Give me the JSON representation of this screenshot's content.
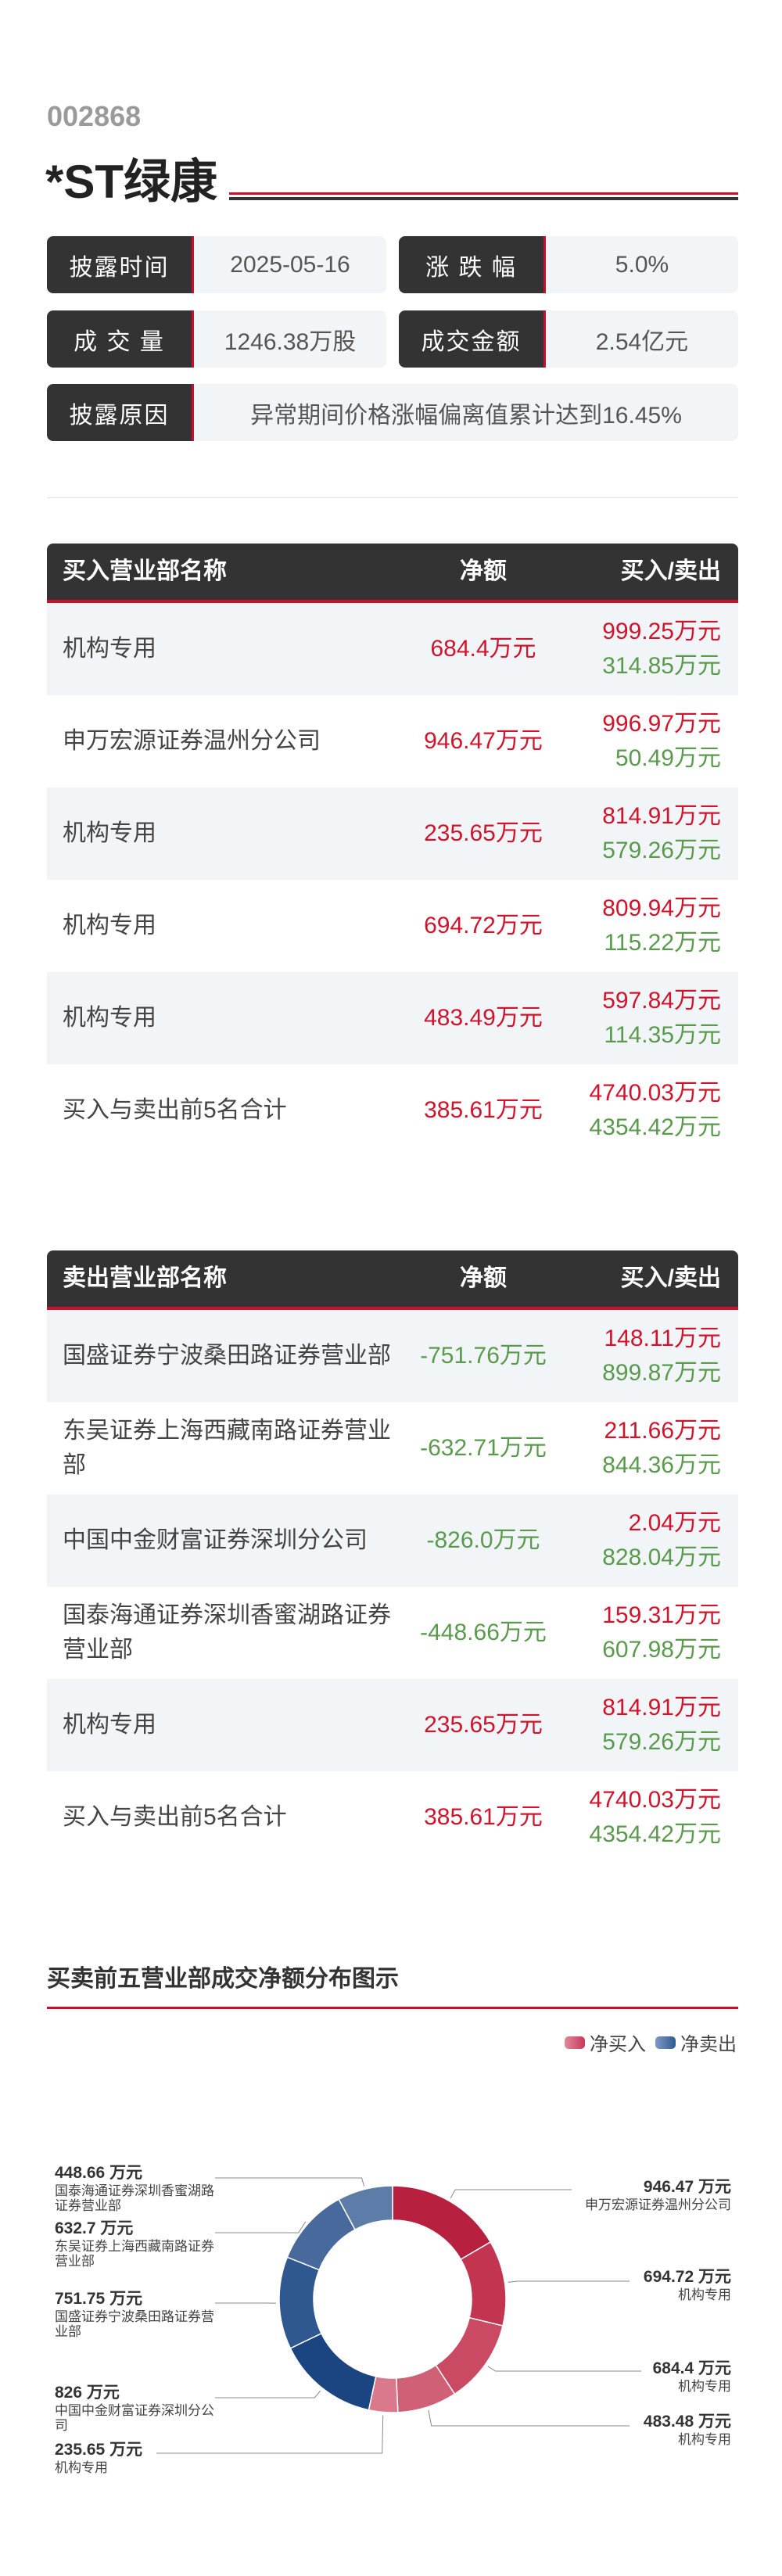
{
  "stock": {
    "code": "002868",
    "name": "*ST绿康"
  },
  "info": [
    {
      "label": "披露时间",
      "value": "2025-05-16"
    },
    {
      "label": "涨 跌 幅",
      "value": "5.0%"
    },
    {
      "label": "成 交 量",
      "value": "1246.38万股"
    },
    {
      "label": "成交金额",
      "value": "2.54亿元"
    },
    {
      "label": "披露原因",
      "value": "异常期间价格涨幅偏离值累计达到16.45%"
    }
  ],
  "buy_table": {
    "headers": [
      "买入营业部名称",
      "净额",
      "买入/卖出"
    ],
    "rows": [
      {
        "name": "机构专用",
        "net": "684.4万元",
        "buy": "999.25万元",
        "sell": "314.85万元"
      },
      {
        "name": "申万宏源证券温州分公司",
        "net": "946.47万元",
        "buy": "996.97万元",
        "sell": "50.49万元"
      },
      {
        "name": "机构专用",
        "net": "235.65万元",
        "buy": "814.91万元",
        "sell": "579.26万元"
      },
      {
        "name": "机构专用",
        "net": "694.72万元",
        "buy": "809.94万元",
        "sell": "115.22万元"
      },
      {
        "name": "机构专用",
        "net": "483.49万元",
        "buy": "597.84万元",
        "sell": "114.35万元"
      },
      {
        "name": "买入与卖出前5名合计",
        "net": "385.61万元",
        "buy": "4740.03万元",
        "sell": "4354.42万元"
      }
    ]
  },
  "sell_table": {
    "headers": [
      "卖出营业部名称",
      "净额",
      "买入/卖出"
    ],
    "rows": [
      {
        "name": "国盛证券宁波桑田路证券营业部",
        "net": "-751.76万元",
        "buy": "148.11万元",
        "sell": "899.87万元",
        "neg": true
      },
      {
        "name": "东吴证券上海西藏南路证券营业部",
        "net": "-632.71万元",
        "buy": "211.66万元",
        "sell": "844.36万元",
        "neg": true
      },
      {
        "name": "中国中金财富证券深圳分公司",
        "net": "-826.0万元",
        "buy": "2.04万元",
        "sell": "828.04万元",
        "neg": true
      },
      {
        "name": "国泰海通证券深圳香蜜湖路证券营业部",
        "net": "-448.66万元",
        "buy": "159.31万元",
        "sell": "607.98万元",
        "neg": true
      },
      {
        "name": "机构专用",
        "net": "235.65万元",
        "buy": "814.91万元",
        "sell": "579.26万元"
      },
      {
        "name": "买入与卖出前5名合计",
        "net": "385.61万元",
        "buy": "4740.03万元",
        "sell": "4354.42万元"
      }
    ]
  },
  "chart_data": {
    "type": "pie",
    "donut": true,
    "title": "买卖前五营业部成交净额分布图示",
    "legend": [
      {
        "name": "净买入",
        "color": "#c9385a"
      },
      {
        "name": "净卖出",
        "color": "#2e5a90"
      }
    ],
    "legend_position": "top-right",
    "unit": "万元",
    "slices": [
      {
        "value": 946.47,
        "label": "946.47 万元",
        "name": "申万宏源证券温州分公司",
        "type": "buy",
        "color": "#b8203f"
      },
      {
        "value": 694.72,
        "label": "694.72 万元",
        "name": "机构专用",
        "type": "buy",
        "color": "#c2344f"
      },
      {
        "value": 684.4,
        "label": "684.4 万元",
        "name": "机构专用",
        "type": "buy",
        "color": "#c94a62"
      },
      {
        "value": 483.48,
        "label": "483.48 万元",
        "name": "机构专用",
        "type": "buy",
        "color": "#cf6075"
      },
      {
        "value": 235.65,
        "label": "235.65 万元",
        "name": "机构专用",
        "type": "buy",
        "color": "#d9798b"
      },
      {
        "value": 826,
        "label": "826 万元",
        "name": "中国中金财富证券深圳分公司",
        "type": "sell",
        "color": "#1a4580"
      },
      {
        "value": 751.75,
        "label": "751.75 万元",
        "name": "国盛证券宁波桑田路证券营业部",
        "type": "sell",
        "color": "#2f5890"
      },
      {
        "value": 632.7,
        "label": "632.7 万元",
        "name": "东吴证券上海西藏南路证券营业部",
        "type": "sell",
        "color": "#47699c"
      },
      {
        "value": 448.66,
        "label": "448.66 万元",
        "name": "国泰海通证券深圳香蜜湖路证券营业部",
        "type": "sell",
        "color": "#5e7ca8"
      }
    ]
  }
}
